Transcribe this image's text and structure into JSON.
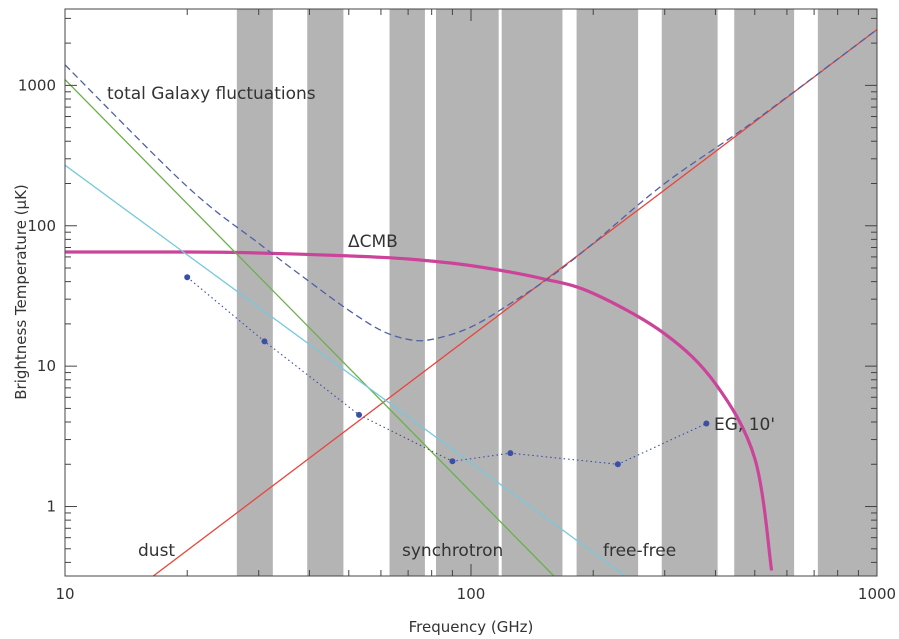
{
  "chart_data": {
    "type": "line",
    "xlabel": "Frequency (GHz)",
    "ylabel": "Brightness Temperature (μK)",
    "x_scale": "log",
    "y_scale": "log",
    "xlim": [
      10,
      1000
    ],
    "ylim": [
      0.32,
      3500
    ],
    "x_ticks": [
      {
        "value": 10,
        "label": "10"
      },
      {
        "value": 100,
        "label": "100"
      },
      {
        "value": 1000,
        "label": "1000"
      }
    ],
    "y_ticks": [
      {
        "value": 1,
        "label": "1"
      },
      {
        "value": 10,
        "label": "10"
      },
      {
        "value": 100,
        "label": "100"
      },
      {
        "value": 1000,
        "label": "1000"
      }
    ],
    "bands_ghz": [
      [
        26.5,
        32.5
      ],
      [
        39.5,
        48.5
      ],
      [
        63,
        77
      ],
      [
        82,
        117
      ],
      [
        119,
        168
      ],
      [
        182,
        258
      ],
      [
        295,
        405
      ],
      [
        445,
        625
      ],
      [
        715,
        1000
      ]
    ],
    "series": [
      {
        "color": "#cc4499",
        "style": "thick",
        "x": [
          10,
          20,
          30,
          50,
          70,
          100,
          150,
          200,
          300,
          400,
          500,
          550
        ],
        "y": [
          65,
          65,
          64,
          61,
          58,
          52,
          42,
          33,
          17,
          7.5,
          2.2,
          0.35
        ]
      },
      {
        "color": "#e8453c",
        "style": "solid",
        "x": [
          16.5,
          1000
        ],
        "y": [
          0.32,
          2500
        ]
      },
      {
        "color": "#6ab04c",
        "style": "solid",
        "x": [
          10,
          160
        ],
        "y": [
          1100,
          0.32
        ]
      },
      {
        "color": "#78c8dc",
        "style": "solid",
        "x": [
          10,
          240
        ],
        "y": [
          270,
          0.32
        ]
      },
      {
        "color": "#5060a8",
        "style": "dashed",
        "x": [
          10,
          20,
          30,
          40,
          50,
          60,
          70,
          80,
          100,
          130,
          160,
          200,
          300,
          500,
          1000
        ],
        "y": [
          1400,
          190,
          75,
          40,
          25,
          18,
          15.5,
          15.5,
          19,
          30,
          45,
          75,
          200,
          560,
          2500
        ]
      },
      {
        "color": "#3a4fa8",
        "style": "dotted-markers",
        "x": [
          20,
          31,
          53,
          90,
          125,
          230,
          380
        ],
        "y": [
          43,
          15,
          4.5,
          2.1,
          2.4,
          2.0,
          3.9
        ]
      }
    ],
    "annotations": {
      "total": "total Galaxy fluctuations",
      "cmb": "ΔCMB",
      "eg": "EG, 10'",
      "dust": "dust",
      "synchrotron": "synchrotron",
      "freefree": "free-free"
    }
  }
}
